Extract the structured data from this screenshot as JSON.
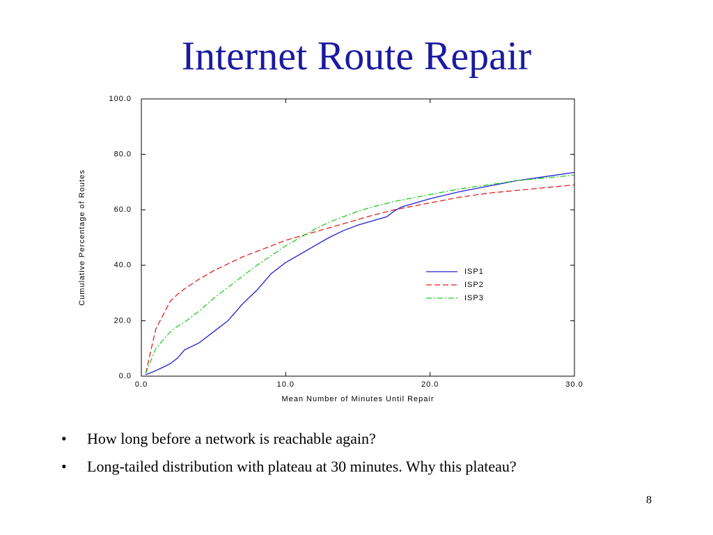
{
  "title": "Internet Route Repair",
  "bullets": [
    "How long before a network is reachable again?",
    "Long-tailed distribution with plateau at 30 minutes. Why this plateau?"
  ],
  "page_number": "8",
  "chart_data": {
    "type": "line",
    "xlabel": "Mean Number of Minutes Until Repair",
    "ylabel": "Cumulative Percentage of Routes",
    "x": [
      0.3,
      1,
      1.5,
      2,
      2.5,
      3,
      4,
      5,
      6,
      7,
      8,
      9,
      10,
      11,
      12,
      13,
      14,
      15,
      16,
      17,
      17.5,
      18,
      20,
      22,
      24,
      26,
      28,
      30
    ],
    "series": [
      {
        "name": "ISP1",
        "color": "#1f1fcc",
        "linestyle": "solid",
        "values": [
          0.5,
          2,
          3.2,
          4.5,
          6.5,
          9.5,
          12,
          16,
          20,
          26,
          31,
          37,
          41,
          44,
          47,
          50,
          52.5,
          54.5,
          56,
          57.5,
          59.5,
          61,
          64,
          66.5,
          68.5,
          70.5,
          72,
          73.5
        ]
      },
      {
        "name": "ISP2",
        "color": "#e02020",
        "linestyle": "dashed",
        "values": [
          1,
          17,
          22,
          27,
          29.5,
          31.5,
          35,
          38,
          40.5,
          43,
          45,
          47,
          49,
          50.5,
          52,
          53.5,
          55,
          56.5,
          58,
          59.3,
          60,
          60.5,
          62.5,
          64.5,
          66,
          67,
          68,
          69
        ]
      },
      {
        "name": "ISP3",
        "color": "#20cc20",
        "linestyle": "dashdot",
        "values": [
          1,
          10,
          13,
          16,
          18,
          19.5,
          23.5,
          28,
          32,
          36,
          40,
          43.5,
          47,
          50,
          53,
          55.5,
          57.5,
          59.5,
          61,
          62.3,
          63,
          63.5,
          65.5,
          67.5,
          69,
          70.5,
          71.5,
          72.5
        ]
      }
    ],
    "xlim": [
      0,
      30
    ],
    "xticks": [
      {
        "value": 0,
        "label": "0.0"
      },
      {
        "value": 10,
        "label": "10.0"
      },
      {
        "value": 20,
        "label": "20.0"
      },
      {
        "value": 30,
        "label": "30.0"
      }
    ],
    "ylim": [
      0,
      100
    ],
    "yticks": [
      {
        "value": 0,
        "label": "0.0"
      },
      {
        "value": 20,
        "label": "20.0"
      },
      {
        "value": 40,
        "label": "40.0"
      },
      {
        "value": 60,
        "label": "60.0"
      },
      {
        "value": 80,
        "label": "80.0"
      },
      {
        "value": 100,
        "label": "100.0"
      }
    ],
    "grid": false,
    "legend": "right"
  }
}
